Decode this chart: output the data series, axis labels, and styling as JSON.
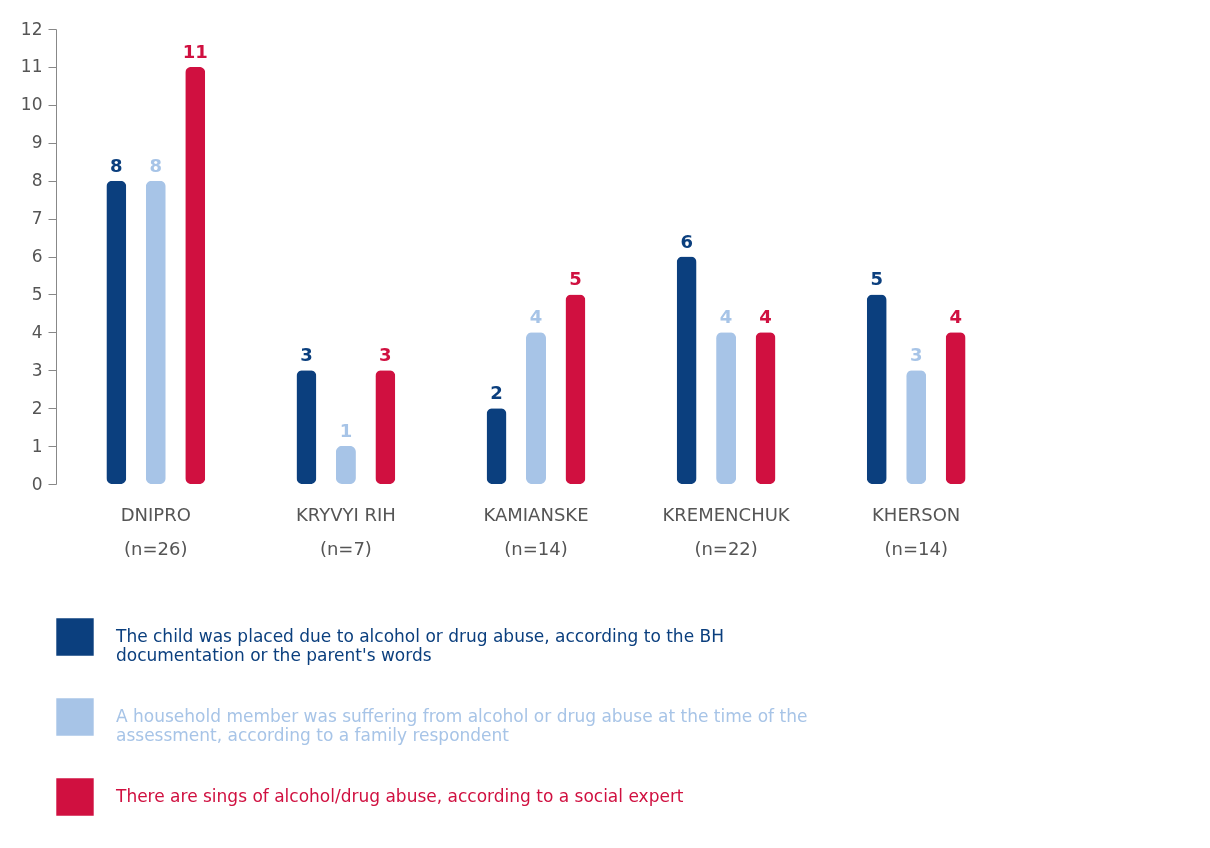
{
  "chart_data": {
    "type": "bar",
    "categories": [
      "DNIPRO\n(n=26)",
      "KRYVYI RIH\n(n=7)",
      "KAMIANSKE\n(n=14)",
      "KREMENCHUK\n(n=22)",
      "KHERSON\n(n=14)"
    ],
    "series": [
      {
        "name": "The child was placed due to alcohol or drug abuse, according to the BH documentation or the parent's words",
        "color": "#0b3f7e",
        "values": [
          8,
          3,
          2,
          6,
          5
        ]
      },
      {
        "name": "A household member was suffering from alcohol or drug abuse at the time of the assessment, according to a family respondent",
        "color": "#a7c4e7",
        "values": [
          8,
          1,
          4,
          4,
          3
        ]
      },
      {
        "name": "There are sings of alcohol/drug abuse, according to a social expert",
        "color": "#d01040",
        "values": [
          11,
          3,
          5,
          4,
          4
        ]
      }
    ],
    "ylim": [
      0,
      12
    ],
    "yticks": [
      0,
      1,
      2,
      3,
      4,
      5,
      6,
      7,
      8,
      9,
      10,
      11,
      12
    ],
    "grid": false,
    "data_labels": true,
    "legend": "bottom left"
  }
}
